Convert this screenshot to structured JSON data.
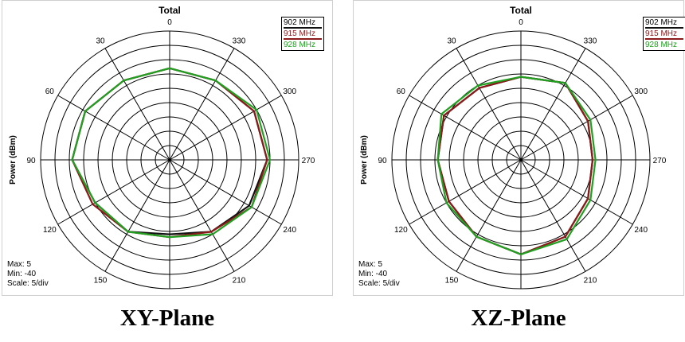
{
  "chart_data": [
    {
      "type": "polar-line",
      "plane_label": "XY-Plane",
      "title": "Total",
      "ylabel": "Power (dBm)",
      "angle_ticks": [
        "0",
        "30",
        "60",
        "90",
        "120",
        "150",
        "180",
        "210",
        "240",
        "270",
        "300",
        "330"
      ],
      "angle_direction": "counter-clockwise from top",
      "grid": true,
      "r_min": -40,
      "r_max": 5,
      "footer": {
        "max": "Max: 5",
        "min": "Min: -40",
        "scale": "Scale: 5/div"
      },
      "legend_position": "top-right",
      "series": [
        {
          "name": "902 MHz",
          "color": "#111111",
          "points": [
            [
              0,
              -8
            ],
            [
              30,
              -8
            ],
            [
              60,
              -6
            ],
            [
              90,
              -6
            ],
            [
              120,
              -10
            ],
            [
              150,
              -11
            ],
            [
              180,
              -14
            ],
            [
              210,
              -11
            ],
            [
              240,
              -8
            ],
            [
              270,
              -6
            ],
            [
              300,
              -6
            ],
            [
              330,
              -8
            ]
          ]
        },
        {
          "name": "915 MHz",
          "color": "#8b1a1a",
          "points": [
            [
              0,
              -8
            ],
            [
              30,
              -8
            ],
            [
              60,
              -6
            ],
            [
              90,
              -6
            ],
            [
              120,
              -9
            ],
            [
              150,
              -11
            ],
            [
              180,
              -13
            ],
            [
              210,
              -11
            ],
            [
              240,
              -7
            ],
            [
              270,
              -6
            ],
            [
              300,
              -6
            ],
            [
              330,
              -8
            ]
          ]
        },
        {
          "name": "928 MHz",
          "color": "#22a022",
          "points": [
            [
              0,
              -8
            ],
            [
              30,
              -8
            ],
            [
              60,
              -6
            ],
            [
              90,
              -6
            ],
            [
              120,
              -10
            ],
            [
              150,
              -11
            ],
            [
              180,
              -13
            ],
            [
              210,
              -10
            ],
            [
              240,
              -7
            ],
            [
              270,
              -5
            ],
            [
              300,
              -5
            ],
            [
              330,
              -8
            ]
          ]
        }
      ]
    },
    {
      "type": "polar-line",
      "plane_label": "XZ-Plane",
      "title": "Total",
      "ylabel": "Power (dBm)",
      "angle_ticks": [
        "0",
        "30",
        "60",
        "90",
        "120",
        "150",
        "180",
        "210",
        "240",
        "270",
        "300",
        "330"
      ],
      "angle_direction": "counter-clockwise from top",
      "grid": true,
      "r_min": -40,
      "r_max": 5,
      "footer": {
        "max": "Max: 5",
        "min": "Min: -40",
        "scale": "Scale: 5/div"
      },
      "legend_position": "top-right",
      "series": [
        {
          "name": "902 MHz",
          "color": "#111111",
          "points": [
            [
              0,
              -11
            ],
            [
              30,
              -11
            ],
            [
              60,
              -9
            ],
            [
              90,
              -11
            ],
            [
              120,
              -11
            ],
            [
              150,
              -9
            ],
            [
              180,
              -7
            ],
            [
              210,
              -9
            ],
            [
              240,
              -13
            ],
            [
              270,
              -15
            ],
            [
              300,
              -13
            ],
            [
              330,
              -9
            ]
          ]
        },
        {
          "name": "915 MHz",
          "color": "#8b1a1a",
          "points": [
            [
              0,
              -11
            ],
            [
              30,
              -11
            ],
            [
              60,
              -9
            ],
            [
              90,
              -11
            ],
            [
              120,
              -11
            ],
            [
              150,
              -9
            ],
            [
              180,
              -7
            ],
            [
              210,
              -9
            ],
            [
              240,
              -13
            ],
            [
              270,
              -15
            ],
            [
              300,
              -13
            ],
            [
              330,
              -9
            ]
          ]
        },
        {
          "name": "928 MHz",
          "color": "#22a022",
          "points": [
            [
              0,
              -11
            ],
            [
              30,
              -10
            ],
            [
              60,
              -8
            ],
            [
              90,
              -11
            ],
            [
              120,
              -10
            ],
            [
              150,
              -9
            ],
            [
              180,
              -7
            ],
            [
              210,
              -8
            ],
            [
              240,
              -12
            ],
            [
              270,
              -14
            ],
            [
              300,
              -12
            ],
            [
              330,
              -9
            ]
          ]
        }
      ]
    }
  ]
}
